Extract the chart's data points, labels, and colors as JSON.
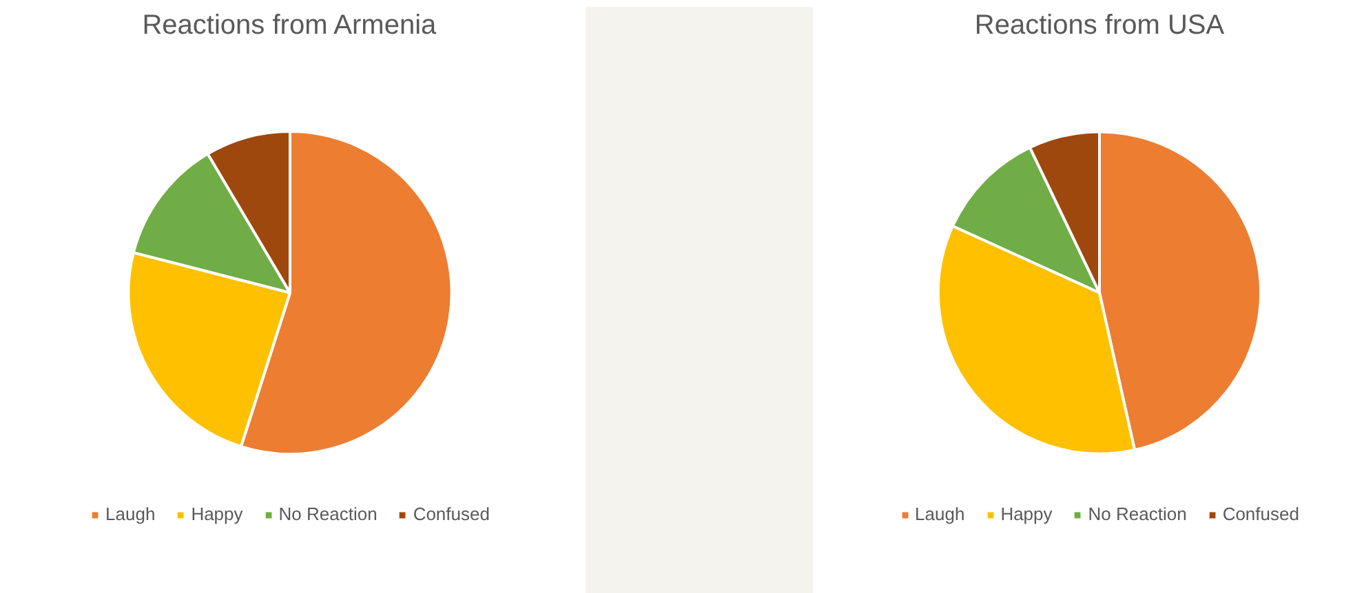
{
  "chart_data": [
    {
      "type": "pie",
      "title": "Reactions from Armenia",
      "categories": [
        "Laugh",
        "Happy",
        "No Reaction",
        "Confused"
      ],
      "values": [
        54.9,
        24.1,
        12.5,
        8.5
      ],
      "colors": [
        "#ed7d31",
        "#ffc000",
        "#70ad47",
        "#9e480e"
      ],
      "legend": "bottom"
    },
    {
      "type": "pie",
      "title": "Reactions from USA",
      "categories": [
        "Laugh",
        "Happy",
        "No Reaction",
        "Confused"
      ],
      "values": [
        46.5,
        35.3,
        11.1,
        7.1
      ],
      "colors": [
        "#ed7d31",
        "#ffc000",
        "#70ad47",
        "#9e480e"
      ],
      "legend": "bottom"
    }
  ]
}
